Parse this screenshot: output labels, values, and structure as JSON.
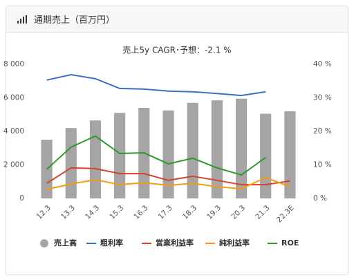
{
  "card": {
    "title": "通期売上（百万円）"
  },
  "chart_data": {
    "type": "combo",
    "title": "売上5y CAGR･予想：-2.1 %",
    "categories": [
      "12.3",
      "13.3",
      "14.3",
      "15.3",
      "16.3",
      "17.3",
      "18.3",
      "19.3",
      "20.3",
      "21.3",
      "22.3E"
    ],
    "series": [
      {
        "name": "売上高",
        "type": "bar",
        "color": "#a6a4a4",
        "values": [
          3500,
          4200,
          4650,
          5100,
          5400,
          5250,
          5700,
          5850,
          5950,
          5050,
          5200
        ]
      },
      {
        "name": "粗利率",
        "type": "line",
        "axis": "y2",
        "color": "#3a6cc8",
        "values": [
          35.3,
          36.9,
          35.7,
          32.8,
          32.6,
          32.0,
          31.8,
          31.3,
          30.7,
          31.8,
          null
        ]
      },
      {
        "name": "営業利益率",
        "type": "line",
        "axis": "y2",
        "color": "#d2452c",
        "values": [
          4.5,
          9.1,
          8.9,
          7.4,
          7.4,
          5.4,
          6.6,
          5.4,
          4.1,
          4.1,
          5.2
        ]
      },
      {
        "name": "純利益率",
        "type": "line",
        "axis": "y2",
        "color": "#f39c12",
        "values": [
          2.7,
          4.3,
          5.6,
          4.1,
          4.7,
          3.9,
          4.5,
          3.5,
          2.9,
          6.2,
          3.5
        ]
      },
      {
        "name": "ROE",
        "type": "line",
        "axis": "y2",
        "color": "#2a9a2a",
        "values": [
          8.7,
          15.3,
          18.6,
          13.4,
          13.6,
          10.3,
          12.0,
          9.1,
          7.0,
          12.2,
          null
        ]
      }
    ],
    "ylim": [
      0,
      8000
    ],
    "yticks": [
      {
        "value": 0,
        "label": "0"
      },
      {
        "value": 2000,
        "label": "2 000"
      },
      {
        "value": 4000,
        "label": "4 000"
      },
      {
        "value": 6000,
        "label": "6 000"
      },
      {
        "value": 8000,
        "label": "8 000"
      }
    ],
    "y2lim": [
      0,
      40
    ],
    "y2ticks": [
      {
        "value": 0,
        "label": "0 %"
      },
      {
        "value": 10,
        "label": "10 %"
      },
      {
        "value": 20,
        "label": "20 %"
      },
      {
        "value": 30,
        "label": "30 %"
      },
      {
        "value": 40,
        "label": "40 %"
      }
    ],
    "grid": false
  }
}
